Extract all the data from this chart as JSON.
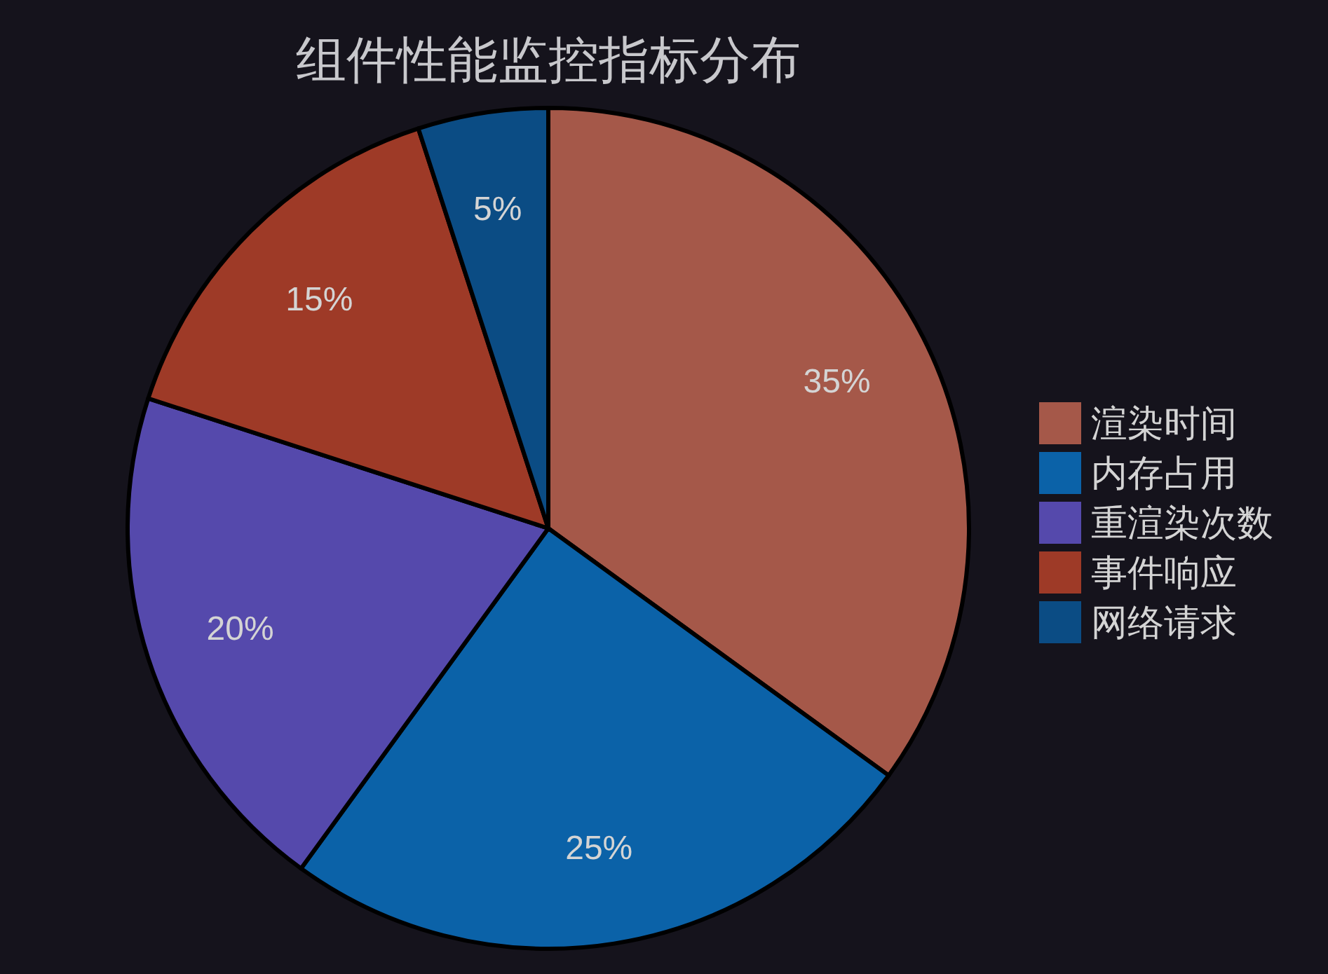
{
  "chart_data": {
    "type": "pie",
    "title": "组件性能监控指标分布",
    "categories": [
      "渲染时间",
      "内存占用",
      "重渲染次数",
      "事件响应",
      "网络请求"
    ],
    "values": [
      35,
      25,
      20,
      15,
      5
    ],
    "colors": [
      "#a55849",
      "#0b62a8",
      "#5549ac",
      "#9e3a27",
      "#0b4c84"
    ],
    "value_labels": [
      "35%",
      "25%",
      "20%",
      "15%",
      "5%"
    ],
    "legend": "right"
  }
}
